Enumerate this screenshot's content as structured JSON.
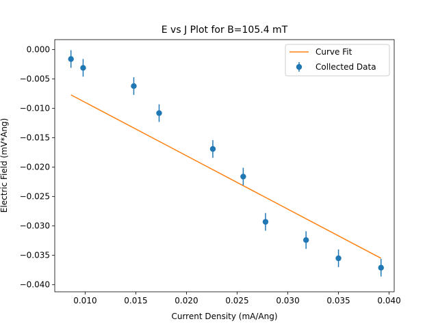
{
  "chart_data": {
    "type": "scatter",
    "title": "E vs J Plot for B=105.4 mT",
    "xlabel": "Current Density (mA/Ang)",
    "ylabel": "Electric Field (mV*Ang)",
    "xlim": [
      0.007,
      0.0405
    ],
    "ylim": [
      -0.0412,
      0.0017
    ],
    "xticks": [
      {
        "value": 0.01,
        "label": "0.010"
      },
      {
        "value": 0.015,
        "label": "0.015"
      },
      {
        "value": 0.02,
        "label": "0.020"
      },
      {
        "value": 0.025,
        "label": "0.025"
      },
      {
        "value": 0.03,
        "label": "0.030"
      },
      {
        "value": 0.035,
        "label": "0.035"
      },
      {
        "value": 0.04,
        "label": "0.040"
      }
    ],
    "yticks": [
      {
        "value": 0.0,
        "label": "0.000"
      },
      {
        "value": -0.005,
        "label": "−0.005"
      },
      {
        "value": -0.01,
        "label": "−0.010"
      },
      {
        "value": -0.015,
        "label": "−0.015"
      },
      {
        "value": -0.02,
        "label": "−0.020"
      },
      {
        "value": -0.025,
        "label": "−0.025"
      },
      {
        "value": -0.03,
        "label": "−0.030"
      },
      {
        "value": -0.035,
        "label": "−0.035"
      },
      {
        "value": -0.04,
        "label": "−0.040"
      }
    ],
    "grid": false,
    "legend_position": "top-right",
    "series": [
      {
        "name": "Curve Fit",
        "kind": "line",
        "color": "#ff7f0e",
        "x": [
          0.0086,
          0.0392
        ],
        "y": [
          -0.0077,
          -0.0355
        ]
      },
      {
        "name": "Collected Data",
        "kind": "errorbar",
        "color": "#1f77b4",
        "x": [
          0.0086,
          0.0098,
          0.0148,
          0.0173,
          0.0226,
          0.0256,
          0.0278,
          0.0318,
          0.035,
          0.0392
        ],
        "y": [
          -0.0016,
          -0.0031,
          -0.0062,
          -0.0108,
          -0.0169,
          -0.0216,
          -0.0293,
          -0.0324,
          -0.0355,
          -0.0371
        ],
        "yerr": [
          0.0015,
          0.0015,
          0.0015,
          0.0015,
          0.0015,
          0.0015,
          0.0015,
          0.0015,
          0.0015,
          0.0015
        ]
      }
    ]
  }
}
